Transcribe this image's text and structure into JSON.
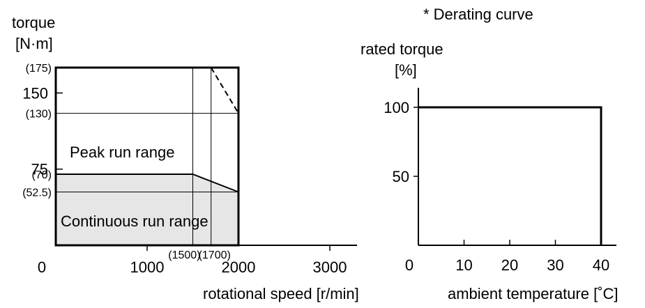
{
  "note": "* Derating curve",
  "chart_data": [
    {
      "type": "area",
      "ylabel_line1": "torque",
      "ylabel_line2": "[N·m]",
      "xlabel": "rotational speed [r/min]",
      "xlim": [
        0,
        3250
      ],
      "ylim": [
        0,
        175
      ],
      "x_ticks": [
        {
          "value": 0,
          "label": "0"
        },
        {
          "value": 1000,
          "label": "1000"
        },
        {
          "value": 2000,
          "label": "2000"
        },
        {
          "value": 3000,
          "label": "3000"
        }
      ],
      "x_marker_ticks": [
        {
          "value": 1500,
          "label": "(1500)"
        },
        {
          "value": 1700,
          "label": "(1700)"
        }
      ],
      "y_ticks": [
        {
          "value": 175,
          "label": "(175)",
          "style": "small",
          "tick": false
        },
        {
          "value": 150,
          "label": "150",
          "style": "big",
          "tick": true
        },
        {
          "value": 130,
          "label": "(130)",
          "style": "small",
          "tick": false
        },
        {
          "value": 75,
          "label": "75",
          "style": "big",
          "tick": true
        },
        {
          "value": 70,
          "label": "(70)",
          "style": "small",
          "tick": false
        },
        {
          "value": 52.5,
          "label": "(52.5)",
          "style": "small",
          "tick": false
        }
      ],
      "series": [
        {
          "name": "Peak run range",
          "x": [
            0,
            1700,
            2000
          ],
          "y": [
            175,
            175,
            130
          ]
        },
        {
          "name": "Continuous run range",
          "x": [
            0,
            1500,
            2000
          ],
          "y": [
            70,
            70,
            52.5
          ]
        }
      ],
      "reference_lines": {
        "vertical": [
          1500,
          1700
        ],
        "horizontal": [
          130,
          52.5
        ]
      },
      "region_labels": [
        "Peak run range",
        "Continuous run range"
      ],
      "colors": {
        "continuous_fill": "#e6e6e6",
        "line": "#000000"
      }
    },
    {
      "type": "line",
      "ylabel_line1": "rated torque",
      "ylabel_line2": "[%]",
      "xlabel": "ambient temperature [˚C]",
      "xlim": [
        0,
        44
      ],
      "ylim": [
        0,
        115
      ],
      "x_ticks": [
        {
          "value": 0,
          "label": "0"
        },
        {
          "value": 10,
          "label": "10"
        },
        {
          "value": 20,
          "label": "20"
        },
        {
          "value": 30,
          "label": "30"
        },
        {
          "value": 40,
          "label": "40"
        }
      ],
      "y_ticks": [
        {
          "value": 100,
          "label": "100"
        },
        {
          "value": 50,
          "label": "50"
        }
      ],
      "series": [
        {
          "x": [
            0,
            40,
            40
          ],
          "y": [
            100,
            100,
            0
          ]
        }
      ]
    }
  ]
}
